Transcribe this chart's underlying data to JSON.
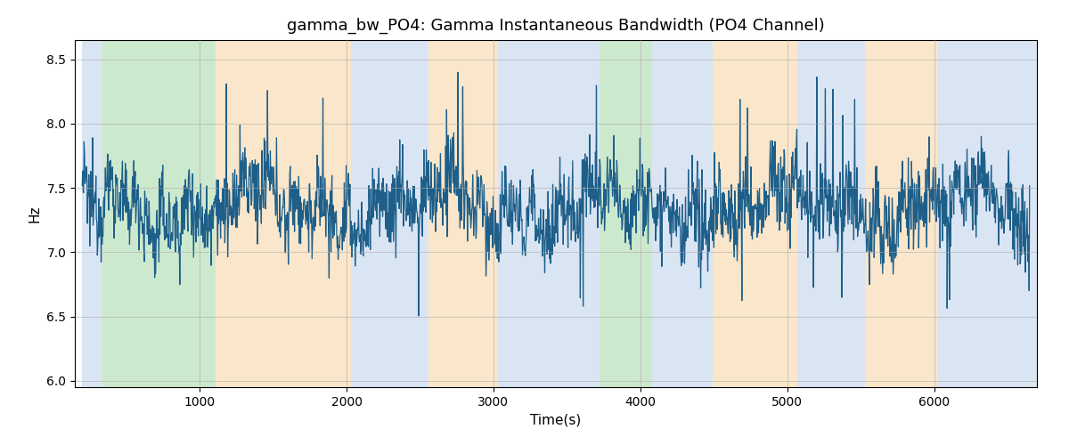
{
  "title": "gamma_bw_PO4: Gamma Instantaneous Bandwidth (PO4 Channel)",
  "xlabel": "Time(s)",
  "ylabel": "Hz",
  "ylim": [
    5.95,
    8.65
  ],
  "xlim": [
    150,
    6700
  ],
  "line_color": "#1e5f8a",
  "line_width": 0.9,
  "title_fontsize": 13,
  "label_fontsize": 11,
  "tick_fontsize": 10,
  "seed": 12345,
  "t_start": 200,
  "t_end": 6650,
  "n_points": 2000,
  "base_mean": 7.35,
  "noise_std": 0.16,
  "colored_bands": [
    {
      "xmin": 200,
      "xmax": 340,
      "color": "#aec6e8",
      "alpha": 0.45
    },
    {
      "xmin": 340,
      "xmax": 1110,
      "color": "#90d090",
      "alpha": 0.45
    },
    {
      "xmin": 1110,
      "xmax": 2030,
      "color": "#f5c98a",
      "alpha": 0.45
    },
    {
      "xmin": 2030,
      "xmax": 2560,
      "color": "#aec6e8",
      "alpha": 0.45
    },
    {
      "xmin": 2560,
      "xmax": 3030,
      "color": "#f5c98a",
      "alpha": 0.45
    },
    {
      "xmin": 3030,
      "xmax": 3650,
      "color": "#aec6e8",
      "alpha": 0.45
    },
    {
      "xmin": 3650,
      "xmax": 3720,
      "color": "#aec6e8",
      "alpha": 0.45
    },
    {
      "xmin": 3720,
      "xmax": 4080,
      "color": "#90d090",
      "alpha": 0.45
    },
    {
      "xmin": 4080,
      "xmax": 4490,
      "color": "#aec6e8",
      "alpha": 0.45
    },
    {
      "xmin": 4490,
      "xmax": 5070,
      "color": "#f5c98a",
      "alpha": 0.45
    },
    {
      "xmin": 5070,
      "xmax": 5530,
      "color": "#aec6e8",
      "alpha": 0.45
    },
    {
      "xmin": 5530,
      "xmax": 6020,
      "color": "#f5c98a",
      "alpha": 0.45
    },
    {
      "xmin": 6020,
      "xmax": 6700,
      "color": "#aec6e8",
      "alpha": 0.45
    }
  ],
  "figsize": [
    12.0,
    5.0
  ],
  "dpi": 100
}
